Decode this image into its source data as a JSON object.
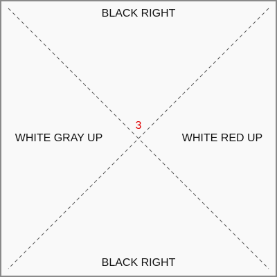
{
  "board": {
    "top_label": "BLACK RIGHT",
    "bottom_label": "BLACK RIGHT",
    "left_label": "WHITE GRAY UP",
    "right_label": "WHITE RED UP",
    "center_number": "3"
  },
  "colors": {
    "background": "#f9f9f9",
    "border": "#8a8a8a",
    "label_text": "#111111",
    "center_number": "#e00000",
    "diagonal_line": "#555555"
  }
}
